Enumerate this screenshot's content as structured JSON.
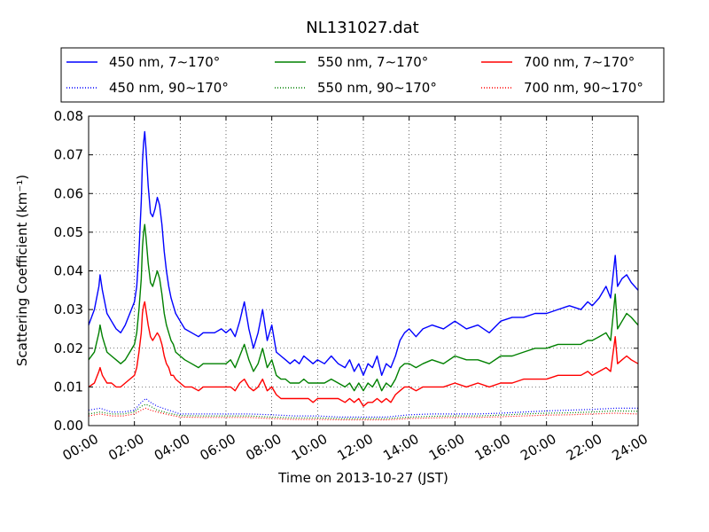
{
  "chart_data": {
    "type": "line",
    "title": "NL131027.dat",
    "xlabel": "Time on 2013-10-27 (JST)",
    "ylabel": "Scattering Coefficient (km⁻¹)",
    "xlim": [
      0,
      24
    ],
    "ylim": [
      0,
      0.08
    ],
    "x_ticks": [
      "00:00",
      "02:00",
      "04:00",
      "06:00",
      "08:00",
      "10:00",
      "12:00",
      "14:00",
      "16:00",
      "18:00",
      "20:00",
      "22:00",
      "24:00"
    ],
    "y_ticks": [
      "0.00",
      "0.01",
      "0.02",
      "0.03",
      "0.04",
      "0.05",
      "0.06",
      "0.07",
      "0.08"
    ],
    "grid": true,
    "legend_position": "top",
    "x_unit": "hours since 00:00",
    "series": [
      {
        "name": "450 nm, 7∼170°",
        "color": "#0000ff",
        "style": "solid",
        "x": [
          0,
          0.25,
          0.45,
          0.5,
          0.6,
          0.8,
          1.0,
          1.2,
          1.4,
          1.6,
          1.8,
          2.0,
          2.1,
          2.2,
          2.3,
          2.35,
          2.4,
          2.45,
          2.5,
          2.6,
          2.7,
          2.8,
          2.9,
          3.0,
          3.1,
          3.2,
          3.3,
          3.4,
          3.5,
          3.6,
          3.7,
          3.8,
          4.0,
          4.2,
          4.5,
          4.8,
          5.0,
          5.2,
          5.5,
          5.8,
          6.0,
          6.2,
          6.4,
          6.6,
          6.8,
          7.0,
          7.2,
          7.4,
          7.6,
          7.8,
          8.0,
          8.2,
          8.4,
          8.6,
          8.8,
          9.0,
          9.2,
          9.4,
          9.6,
          9.8,
          10.0,
          10.3,
          10.6,
          10.9,
          11.2,
          11.4,
          11.6,
          11.8,
          12.0,
          12.2,
          12.4,
          12.6,
          12.8,
          13.0,
          13.2,
          13.4,
          13.6,
          13.8,
          14.0,
          14.3,
          14.6,
          15.0,
          15.5,
          16.0,
          16.5,
          17.0,
          17.5,
          18.0,
          18.5,
          19.0,
          19.5,
          20.0,
          20.5,
          21.0,
          21.5,
          21.8,
          22.0,
          22.3,
          22.6,
          22.8,
          23.0,
          23.1,
          23.3,
          23.5,
          23.7,
          24.0
        ],
        "y": [
          0.026,
          0.03,
          0.036,
          0.039,
          0.035,
          0.029,
          0.027,
          0.025,
          0.024,
          0.026,
          0.029,
          0.032,
          0.036,
          0.045,
          0.058,
          0.068,
          0.073,
          0.076,
          0.072,
          0.062,
          0.055,
          0.054,
          0.056,
          0.059,
          0.057,
          0.052,
          0.045,
          0.04,
          0.036,
          0.033,
          0.031,
          0.029,
          0.027,
          0.025,
          0.024,
          0.023,
          0.024,
          0.024,
          0.024,
          0.025,
          0.024,
          0.025,
          0.023,
          0.027,
          0.032,
          0.025,
          0.02,
          0.024,
          0.03,
          0.022,
          0.026,
          0.019,
          0.018,
          0.017,
          0.016,
          0.017,
          0.016,
          0.018,
          0.017,
          0.016,
          0.017,
          0.016,
          0.018,
          0.016,
          0.015,
          0.017,
          0.014,
          0.016,
          0.013,
          0.016,
          0.015,
          0.018,
          0.013,
          0.016,
          0.015,
          0.018,
          0.022,
          0.024,
          0.025,
          0.023,
          0.025,
          0.026,
          0.025,
          0.027,
          0.025,
          0.026,
          0.024,
          0.027,
          0.028,
          0.028,
          0.029,
          0.029,
          0.03,
          0.031,
          0.03,
          0.032,
          0.031,
          0.033,
          0.036,
          0.033,
          0.044,
          0.036,
          0.038,
          0.039,
          0.037,
          0.035
        ]
      },
      {
        "name": "550 nm, 7∼170°",
        "color": "#008000",
        "style": "solid",
        "x": [
          0,
          0.25,
          0.45,
          0.5,
          0.6,
          0.8,
          1.0,
          1.2,
          1.4,
          1.6,
          1.8,
          2.0,
          2.1,
          2.2,
          2.3,
          2.35,
          2.4,
          2.45,
          2.5,
          2.6,
          2.7,
          2.8,
          2.9,
          3.0,
          3.1,
          3.2,
          3.3,
          3.4,
          3.5,
          3.6,
          3.7,
          3.8,
          4.0,
          4.2,
          4.5,
          4.8,
          5.0,
          5.2,
          5.5,
          5.8,
          6.0,
          6.2,
          6.4,
          6.6,
          6.8,
          7.0,
          7.2,
          7.4,
          7.6,
          7.8,
          8.0,
          8.2,
          8.4,
          8.6,
          8.8,
          9.0,
          9.2,
          9.4,
          9.6,
          9.8,
          10.0,
          10.3,
          10.6,
          10.9,
          11.2,
          11.4,
          11.6,
          11.8,
          12.0,
          12.2,
          12.4,
          12.6,
          12.8,
          13.0,
          13.2,
          13.4,
          13.6,
          13.8,
          14.0,
          14.3,
          14.6,
          15.0,
          15.5,
          16.0,
          16.5,
          17.0,
          17.5,
          18.0,
          18.5,
          19.0,
          19.5,
          20.0,
          20.5,
          21.0,
          21.5,
          21.8,
          22.0,
          22.3,
          22.6,
          22.8,
          23.0,
          23.1,
          23.3,
          23.5,
          23.7,
          24.0
        ],
        "y": [
          0.017,
          0.019,
          0.024,
          0.026,
          0.023,
          0.019,
          0.018,
          0.017,
          0.016,
          0.017,
          0.019,
          0.021,
          0.024,
          0.03,
          0.038,
          0.046,
          0.05,
          0.052,
          0.049,
          0.042,
          0.037,
          0.036,
          0.038,
          0.04,
          0.038,
          0.034,
          0.029,
          0.026,
          0.024,
          0.022,
          0.021,
          0.019,
          0.018,
          0.017,
          0.016,
          0.015,
          0.016,
          0.016,
          0.016,
          0.016,
          0.016,
          0.017,
          0.015,
          0.018,
          0.021,
          0.017,
          0.014,
          0.016,
          0.02,
          0.015,
          0.017,
          0.013,
          0.012,
          0.012,
          0.011,
          0.011,
          0.011,
          0.012,
          0.011,
          0.011,
          0.011,
          0.011,
          0.012,
          0.011,
          0.01,
          0.011,
          0.009,
          0.011,
          0.009,
          0.011,
          0.01,
          0.012,
          0.009,
          0.011,
          0.01,
          0.012,
          0.015,
          0.016,
          0.016,
          0.015,
          0.016,
          0.017,
          0.016,
          0.018,
          0.017,
          0.017,
          0.016,
          0.018,
          0.018,
          0.019,
          0.02,
          0.02,
          0.021,
          0.021,
          0.021,
          0.022,
          0.022,
          0.023,
          0.024,
          0.022,
          0.034,
          0.025,
          0.027,
          0.029,
          0.028,
          0.026
        ]
      },
      {
        "name": "700 nm, 7∼170°",
        "color": "#ff0000",
        "style": "solid",
        "x": [
          0,
          0.25,
          0.45,
          0.5,
          0.6,
          0.8,
          1.0,
          1.2,
          1.4,
          1.6,
          1.8,
          2.0,
          2.1,
          2.2,
          2.3,
          2.35,
          2.4,
          2.45,
          2.5,
          2.6,
          2.7,
          2.8,
          2.9,
          3.0,
          3.1,
          3.2,
          3.3,
          3.4,
          3.5,
          3.6,
          3.7,
          3.8,
          4.0,
          4.2,
          4.5,
          4.8,
          5.0,
          5.2,
          5.5,
          5.8,
          6.0,
          6.2,
          6.4,
          6.6,
          6.8,
          7.0,
          7.2,
          7.4,
          7.6,
          7.8,
          8.0,
          8.2,
          8.4,
          8.6,
          8.8,
          9.0,
          9.2,
          9.4,
          9.6,
          9.8,
          10.0,
          10.3,
          10.6,
          10.9,
          11.2,
          11.4,
          11.6,
          11.8,
          12.0,
          12.2,
          12.4,
          12.6,
          12.8,
          13.0,
          13.2,
          13.4,
          13.6,
          13.8,
          14.0,
          14.3,
          14.6,
          15.0,
          15.5,
          16.0,
          16.5,
          17.0,
          17.5,
          18.0,
          18.5,
          19.0,
          19.5,
          20.0,
          20.5,
          21.0,
          21.5,
          21.8,
          22.0,
          22.3,
          22.6,
          22.8,
          23.0,
          23.1,
          23.3,
          23.5,
          23.7,
          24.0
        ],
        "y": [
          0.01,
          0.011,
          0.014,
          0.015,
          0.013,
          0.011,
          0.011,
          0.01,
          0.01,
          0.011,
          0.012,
          0.013,
          0.015,
          0.019,
          0.024,
          0.029,
          0.031,
          0.032,
          0.03,
          0.026,
          0.023,
          0.022,
          0.023,
          0.024,
          0.023,
          0.021,
          0.018,
          0.016,
          0.015,
          0.013,
          0.013,
          0.012,
          0.011,
          0.01,
          0.01,
          0.009,
          0.01,
          0.01,
          0.01,
          0.01,
          0.01,
          0.01,
          0.009,
          0.011,
          0.012,
          0.01,
          0.009,
          0.01,
          0.012,
          0.009,
          0.01,
          0.008,
          0.007,
          0.007,
          0.007,
          0.007,
          0.007,
          0.007,
          0.007,
          0.006,
          0.007,
          0.007,
          0.007,
          0.007,
          0.006,
          0.007,
          0.006,
          0.007,
          0.005,
          0.006,
          0.006,
          0.007,
          0.006,
          0.007,
          0.006,
          0.008,
          0.009,
          0.01,
          0.01,
          0.009,
          0.01,
          0.01,
          0.01,
          0.011,
          0.01,
          0.011,
          0.01,
          0.011,
          0.011,
          0.012,
          0.012,
          0.012,
          0.013,
          0.013,
          0.013,
          0.014,
          0.013,
          0.014,
          0.015,
          0.014,
          0.023,
          0.016,
          0.017,
          0.018,
          0.017,
          0.016
        ]
      },
      {
        "name": "450 nm, 90∼170°",
        "color": "#0000ff",
        "style": "dotted",
        "x": [
          0,
          0.5,
          1.0,
          1.5,
          2.0,
          2.3,
          2.5,
          2.7,
          3.0,
          3.5,
          4.0,
          5.0,
          6.0,
          7.0,
          8.0,
          9.0,
          10.0,
          11.0,
          12.0,
          13.0,
          14.0,
          15.0,
          16.0,
          17.0,
          18.0,
          19.0,
          20.0,
          21.0,
          22.0,
          23.0,
          24.0
        ],
        "y": [
          0.004,
          0.0045,
          0.0035,
          0.0035,
          0.004,
          0.006,
          0.007,
          0.006,
          0.005,
          0.004,
          0.003,
          0.003,
          0.003,
          0.003,
          0.0028,
          0.0025,
          0.0025,
          0.0022,
          0.0022,
          0.0022,
          0.0028,
          0.003,
          0.003,
          0.003,
          0.0032,
          0.0035,
          0.0038,
          0.004,
          0.0042,
          0.0045,
          0.0045
        ]
      },
      {
        "name": "550 nm, 90∼170°",
        "color": "#008000",
        "style": "dotted",
        "x": [
          0,
          0.5,
          1.0,
          1.5,
          2.0,
          2.3,
          2.5,
          2.7,
          3.0,
          3.5,
          4.0,
          5.0,
          6.0,
          7.0,
          8.0,
          9.0,
          10.0,
          11.0,
          12.0,
          13.0,
          14.0,
          15.0,
          16.0,
          17.0,
          18.0,
          19.0,
          20.0,
          21.0,
          22.0,
          23.0,
          24.0
        ],
        "y": [
          0.003,
          0.0035,
          0.003,
          0.003,
          0.0035,
          0.005,
          0.0055,
          0.005,
          0.004,
          0.0032,
          0.0026,
          0.0025,
          0.0025,
          0.0025,
          0.0022,
          0.002,
          0.002,
          0.0018,
          0.0018,
          0.0018,
          0.0022,
          0.0024,
          0.0025,
          0.0025,
          0.0027,
          0.003,
          0.0032,
          0.0033,
          0.0035,
          0.0038,
          0.0037
        ]
      },
      {
        "name": "700 nm, 90∼170°",
        "color": "#ff0000",
        "style": "dotted",
        "x": [
          0,
          0.5,
          1.0,
          1.5,
          2.0,
          2.3,
          2.5,
          2.7,
          3.0,
          3.5,
          4.0,
          5.0,
          6.0,
          7.0,
          8.0,
          9.0,
          10.0,
          11.0,
          12.0,
          13.0,
          14.0,
          15.0,
          16.0,
          17.0,
          18.0,
          19.0,
          20.0,
          21.0,
          22.0,
          23.0,
          24.0
        ],
        "y": [
          0.0025,
          0.003,
          0.0025,
          0.0025,
          0.003,
          0.004,
          0.0045,
          0.004,
          0.0035,
          0.0028,
          0.0022,
          0.0021,
          0.0021,
          0.0021,
          0.0018,
          0.0016,
          0.0016,
          0.0015,
          0.0015,
          0.0015,
          0.0018,
          0.002,
          0.0021,
          0.0021,
          0.0023,
          0.0025,
          0.0027,
          0.0028,
          0.003,
          0.0032,
          0.003
        ]
      }
    ]
  }
}
